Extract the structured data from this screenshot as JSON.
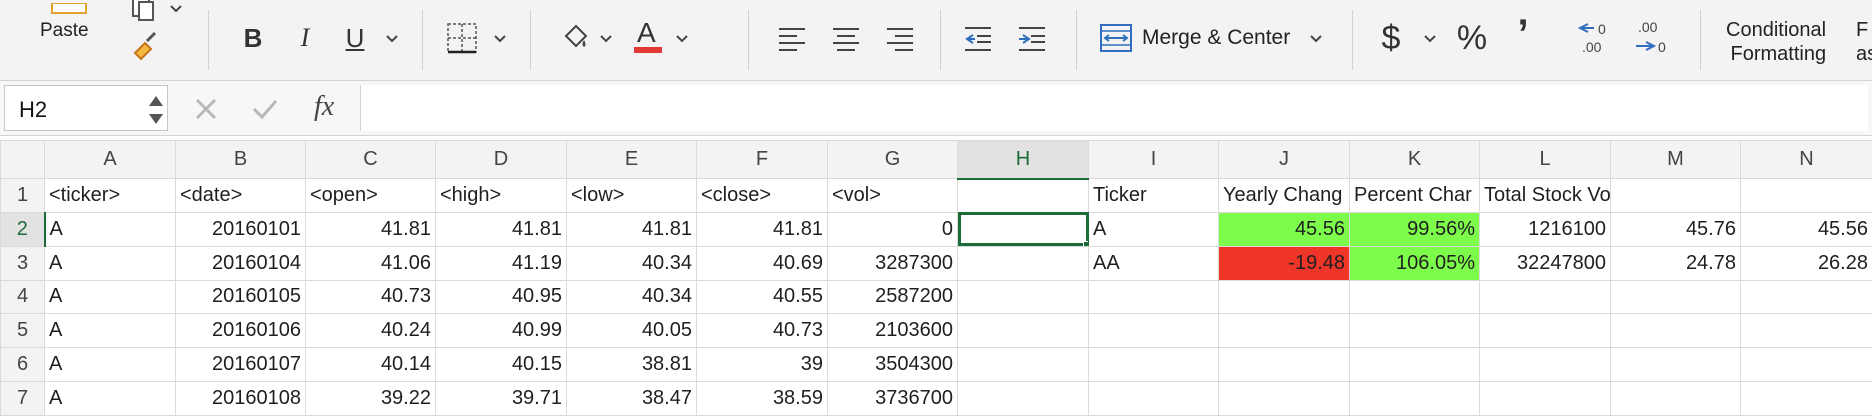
{
  "ribbon": {
    "paste_label": "Paste",
    "bold": "B",
    "italic": "I",
    "underline": "U",
    "merge_label": "Merge & Center",
    "dollar": "$",
    "percent": "%",
    "comma": "’",
    "conditional_line1": "Conditional",
    "conditional_line2": "Formatting",
    "cut_off_line1": "F",
    "cut_off_line2": "as",
    "font_color": "#e53935",
    "accent": "#1e6b3a"
  },
  "formula_bar": {
    "name_box": "H2",
    "fx": "fx",
    "formula": ""
  },
  "grid": {
    "columns": [
      "A",
      "B",
      "C",
      "D",
      "E",
      "F",
      "G",
      "H",
      "I",
      "J",
      "K",
      "L",
      "M",
      "N"
    ],
    "selected_column": "H",
    "selected_row": "2",
    "rows": [
      {
        "n": "1",
        "cells": [
          "<ticker>",
          "<date>",
          "<open>",
          "<high>",
          "<low>",
          "<close>",
          "<vol>",
          "",
          "Ticker",
          "Yearly Chang",
          "Percent Char",
          "Total Stock Volume",
          "",
          ""
        ]
      },
      {
        "n": "2",
        "cells": [
          "A",
          "20160101",
          "41.81",
          "41.81",
          "41.81",
          "41.81",
          "0",
          "",
          "A",
          "45.56",
          "99.56%",
          "1216100",
          "45.76",
          "45.56"
        ]
      },
      {
        "n": "3",
        "cells": [
          "A",
          "20160104",
          "41.06",
          "41.19",
          "40.34",
          "40.69",
          "3287300",
          "",
          "AA",
          "-19.48",
          "106.05%",
          "32247800",
          "24.78",
          "26.28"
        ]
      },
      {
        "n": "4",
        "cells": [
          "A",
          "20160105",
          "40.73",
          "40.95",
          "40.34",
          "40.55",
          "2587200",
          "",
          "",
          "",
          "",
          "",
          "",
          ""
        ]
      },
      {
        "n": "5",
        "cells": [
          "A",
          "20160106",
          "40.24",
          "40.99",
          "40.05",
          "40.73",
          "2103600",
          "",
          "",
          "",
          "",
          "",
          "",
          ""
        ]
      },
      {
        "n": "6",
        "cells": [
          "A",
          "20160107",
          "40.14",
          "40.15",
          "38.81",
          "39",
          "3504300",
          "",
          "",
          "",
          "",
          "",
          "",
          ""
        ]
      },
      {
        "n": "7",
        "cells": [
          "A",
          "20160108",
          "39.22",
          "39.71",
          "38.47",
          "38.59",
          "3736700",
          "",
          "",
          "",
          "",
          "",
          "",
          ""
        ]
      }
    ],
    "fill_colors": {
      "J2": "#7dfc4b",
      "K2": "#7dfc4b",
      "J3": "#ee3528",
      "K3": "#7dfc4b"
    }
  }
}
